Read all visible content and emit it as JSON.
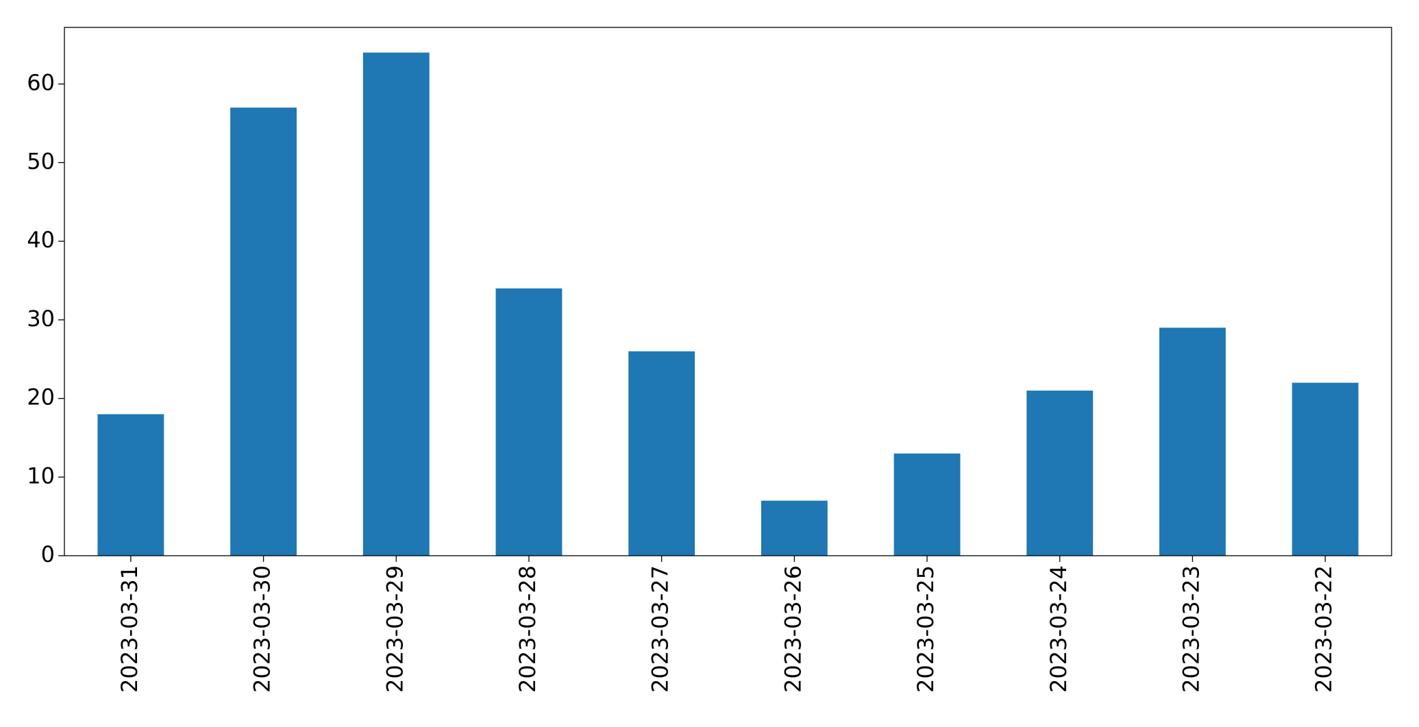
{
  "chart_data": {
    "type": "bar",
    "categories": [
      "2023-03-31",
      "2023-03-30",
      "2023-03-29",
      "2023-03-28",
      "2023-03-27",
      "2023-03-26",
      "2023-03-25",
      "2023-03-24",
      "2023-03-23",
      "2023-03-22"
    ],
    "values": [
      18,
      57,
      64,
      34,
      26,
      7,
      13,
      21,
      29,
      22
    ],
    "color": "#1f77b4",
    "ylim": [
      0,
      67.2
    ],
    "yticks": [
      0,
      10,
      20,
      30,
      40,
      50,
      60
    ],
    "grid": false
  }
}
